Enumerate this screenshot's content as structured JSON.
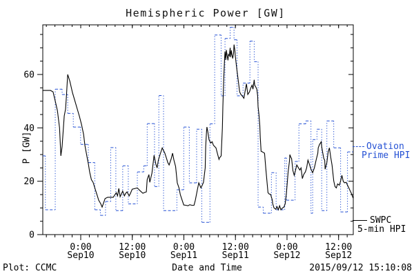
{
  "window": {
    "background": "#ffffff"
  },
  "header": {
    "title": "Hemispheric Power [GW]"
  },
  "footer": {
    "left": "Plot: CCMC",
    "center": "Date and Time",
    "right": "2015/09/12 15:10:08"
  },
  "legend": {
    "ovation": {
      "line1": "Ovation",
      "line2": "Prime HPI",
      "color": "#2551d4"
    },
    "swpc": {
      "line1": "SWPC",
      "line2": "5-min HPI",
      "color": "#000000"
    }
  },
  "chart_data": {
    "type": "line",
    "title": "Hemispheric Power [GW]",
    "xlabel": "Date and Time",
    "ylabel": "P [GW]",
    "x_unit": "hours since 2015-09-09 ~15:15 UT",
    "xlim": [
      0,
      72.25
    ],
    "ylim": [
      0,
      78.6
    ],
    "grid": false,
    "y_major_ticks": [
      0,
      20,
      40,
      60
    ],
    "y_minor_step": 5,
    "x_minor_step": 2,
    "x_minor_offset": 0.83,
    "x_major_ticks": [
      {
        "t": 8.83,
        "time": "0:00",
        "date": "Sep10"
      },
      {
        "t": 20.83,
        "time": "12:00",
        "date": "Sep10"
      },
      {
        "t": 32.83,
        "time": "0:00",
        "date": "Sep11"
      },
      {
        "t": 44.83,
        "time": "12:00",
        "date": "Sep11"
      },
      {
        "t": 56.83,
        "time": "0:00",
        "date": "Sep12"
      },
      {
        "t": 68.83,
        "time": "12:00",
        "date": "Sep12"
      }
    ],
    "series": [
      {
        "name": "SWPC 5-min HPI",
        "color": "#000000",
        "style": "solid",
        "points": [
          [
            0,
            54
          ],
          [
            0.8,
            54
          ],
          [
            1.8,
            54
          ],
          [
            2.4,
            53.5
          ],
          [
            2.9,
            50
          ],
          [
            3.4,
            46.5
          ],
          [
            3.9,
            40
          ],
          [
            4.2,
            29.5
          ],
          [
            4.5,
            33
          ],
          [
            5.0,
            44.5
          ],
          [
            5.3,
            47
          ],
          [
            5.5,
            52
          ],
          [
            5.8,
            60
          ],
          [
            6.3,
            57.5
          ],
          [
            6.9,
            53.2
          ],
          [
            7.4,
            50.5
          ],
          [
            8.0,
            47.2
          ],
          [
            8.5,
            44.5
          ],
          [
            9.0,
            41.3
          ],
          [
            9.5,
            37.5
          ],
          [
            9.8,
            33.5
          ],
          [
            10.3,
            29
          ],
          [
            10.6,
            26.6
          ],
          [
            10.9,
            23.5
          ],
          [
            11.3,
            20.6
          ],
          [
            11.7,
            19.6
          ],
          [
            12.2,
            17
          ],
          [
            12.7,
            14.5
          ],
          [
            13.0,
            12.9
          ],
          [
            13.5,
            11.5
          ],
          [
            13.8,
            10.3
          ],
          [
            14.5,
            13.5
          ],
          [
            15.1,
            14
          ],
          [
            15.8,
            14
          ],
          [
            16.4,
            14
          ],
          [
            17.1,
            15.7
          ],
          [
            17.4,
            14.5
          ],
          [
            17.7,
            17.3
          ],
          [
            18.0,
            14.2
          ],
          [
            18.6,
            16.3
          ],
          [
            19.0,
            14.5
          ],
          [
            19.3,
            15.5
          ],
          [
            19.6,
            16
          ],
          [
            20.1,
            14.5
          ],
          [
            20.4,
            15.5
          ],
          [
            20.8,
            17
          ],
          [
            21.5,
            17.3
          ],
          [
            22.0,
            17.5
          ],
          [
            22.6,
            16.5
          ],
          [
            23.3,
            15.5
          ],
          [
            23.7,
            15.8
          ],
          [
            24.1,
            16
          ],
          [
            24.3,
            20.6
          ],
          [
            24.7,
            22.5
          ],
          [
            24.9,
            19.6
          ],
          [
            25.4,
            23
          ],
          [
            25.9,
            29.7
          ],
          [
            26.3,
            26.5
          ],
          [
            26.6,
            25
          ],
          [
            26.9,
            27.9
          ],
          [
            27.3,
            30
          ],
          [
            27.8,
            32.5
          ],
          [
            28.1,
            31.5
          ],
          [
            28.4,
            30.5
          ],
          [
            28.8,
            28.5
          ],
          [
            29.1,
            27
          ],
          [
            29.4,
            26.1
          ],
          [
            29.9,
            28.5
          ],
          [
            30.2,
            30.5
          ],
          [
            30.5,
            28
          ],
          [
            30.9,
            25.5
          ],
          [
            31.3,
            19.4
          ],
          [
            31.7,
            17.5
          ],
          [
            32.0,
            15
          ],
          [
            32.3,
            13.5
          ],
          [
            32.8,
            11.1
          ],
          [
            33.3,
            11
          ],
          [
            33.8,
            10.8
          ],
          [
            34.2,
            11.2
          ],
          [
            34.7,
            11
          ],
          [
            35.2,
            11
          ],
          [
            35.5,
            12.9
          ],
          [
            36.0,
            17
          ],
          [
            36.3,
            19.4
          ],
          [
            36.8,
            17.5
          ],
          [
            37.1,
            18.5
          ],
          [
            37.4,
            19.6
          ],
          [
            37.8,
            25
          ],
          [
            37.9,
            33
          ],
          [
            38.1,
            38.5
          ],
          [
            38.2,
            40.3
          ],
          [
            38.4,
            38.5
          ],
          [
            38.7,
            35.5
          ],
          [
            39.1,
            34.3
          ],
          [
            39.4,
            34.8
          ],
          [
            39.7,
            33.5
          ],
          [
            40.0,
            33
          ],
          [
            40.3,
            32.5
          ],
          [
            40.7,
            30
          ],
          [
            41.0,
            28.2
          ],
          [
            41.1,
            28.7
          ],
          [
            41.5,
            29.5
          ],
          [
            41.6,
            33
          ],
          [
            41.8,
            40
          ],
          [
            41.9,
            48
          ],
          [
            42.1,
            58
          ],
          [
            42.3,
            66
          ],
          [
            42.4,
            68.6
          ],
          [
            42.6,
            65.5
          ],
          [
            42.7,
            69.2
          ],
          [
            42.9,
            67
          ],
          [
            43.1,
            65.3
          ],
          [
            43.2,
            67.5
          ],
          [
            43.4,
            67
          ],
          [
            43.6,
            70
          ],
          [
            43.7,
            66.5
          ],
          [
            43.9,
            69
          ],
          [
            44.0,
            67.5
          ],
          [
            44.2,
            66
          ],
          [
            44.4,
            68
          ],
          [
            44.5,
            71.2
          ],
          [
            44.7,
            69
          ],
          [
            44.8,
            67
          ],
          [
            45.0,
            64
          ],
          [
            45.2,
            61.4
          ],
          [
            45.5,
            57.5
          ],
          [
            45.8,
            53.5
          ],
          [
            46.1,
            52.5
          ],
          [
            46.4,
            52
          ],
          [
            46.8,
            51.1
          ],
          [
            47.1,
            54
          ],
          [
            47.4,
            56.5
          ],
          [
            47.7,
            52.5
          ],
          [
            48.1,
            53.5
          ],
          [
            48.4,
            55
          ],
          [
            48.7,
            56
          ],
          [
            48.9,
            54.5
          ],
          [
            49.2,
            58
          ],
          [
            49.3,
            56
          ],
          [
            49.5,
            55.5
          ],
          [
            49.8,
            54.5
          ],
          [
            50.0,
            52
          ],
          [
            50.1,
            48
          ],
          [
            50.3,
            45
          ],
          [
            50.5,
            41
          ],
          [
            50.6,
            36.4
          ],
          [
            50.8,
            31.2
          ],
          [
            51.1,
            31
          ],
          [
            51.4,
            30.7
          ],
          [
            51.6,
            30.5
          ],
          [
            51.9,
            24.5
          ],
          [
            52.2,
            19.4
          ],
          [
            52.4,
            15.7
          ],
          [
            52.7,
            15.2
          ],
          [
            53.0,
            15.1
          ],
          [
            53.4,
            13
          ],
          [
            53.5,
            11.6
          ],
          [
            53.8,
            10
          ],
          [
            54.2,
            9.5
          ],
          [
            54.5,
            10.5
          ],
          [
            54.8,
            9.3
          ],
          [
            55.1,
            10.8
          ],
          [
            55.4,
            9.3
          ],
          [
            55.8,
            10
          ],
          [
            56.1,
            10.3
          ],
          [
            56.4,
            11.5
          ],
          [
            56.7,
            15.5
          ],
          [
            57.1,
            23.5
          ],
          [
            57.4,
            27.5
          ],
          [
            57.5,
            30
          ],
          [
            57.7,
            29
          ],
          [
            57.9,
            28.5
          ],
          [
            58.2,
            24
          ],
          [
            58.5,
            22.2
          ],
          [
            58.8,
            24
          ],
          [
            59.1,
            26.1
          ],
          [
            59.5,
            25
          ],
          [
            59.8,
            24.2
          ],
          [
            60.1,
            25
          ],
          [
            60.4,
            21
          ],
          [
            60.7,
            22.5
          ],
          [
            61.1,
            23.5
          ],
          [
            61.4,
            25
          ],
          [
            61.7,
            27.9
          ],
          [
            62.0,
            26.5
          ],
          [
            62.4,
            24.5
          ],
          [
            62.8,
            23.2
          ],
          [
            63.2,
            25
          ],
          [
            63.6,
            27.9
          ],
          [
            64.0,
            30.5
          ],
          [
            64.1,
            32.5
          ],
          [
            64.4,
            33.8
          ],
          [
            64.8,
            34.8
          ],
          [
            64.9,
            33
          ],
          [
            65.1,
            31
          ],
          [
            65.4,
            28.5
          ],
          [
            65.6,
            27.9
          ],
          [
            65.7,
            24.5
          ],
          [
            66.1,
            27
          ],
          [
            66.4,
            31
          ],
          [
            66.7,
            32.5
          ],
          [
            67.0,
            29
          ],
          [
            67.3,
            26.1
          ],
          [
            67.7,
            20.1
          ],
          [
            68.0,
            18
          ],
          [
            68.3,
            17.5
          ],
          [
            68.6,
            19
          ],
          [
            69.0,
            18.5
          ],
          [
            69.3,
            20.1
          ],
          [
            69.6,
            22.2
          ],
          [
            69.9,
            20
          ],
          [
            70.2,
            19.4
          ],
          [
            70.6,
            19.6
          ],
          [
            70.9,
            18.5
          ],
          [
            71.2,
            17.5
          ],
          [
            71.5,
            16.5
          ],
          [
            71.8,
            15.5
          ],
          [
            72.2,
            13.7
          ]
        ]
      },
      {
        "name": "Ovation Prime HPI",
        "color": "#2551d4",
        "style": "step-dashed",
        "steps": [
          [
            0,
            29.5
          ],
          [
            0.6,
            9.3
          ],
          [
            2.9,
            54.5
          ],
          [
            4.5,
            52.5
          ],
          [
            5.8,
            45.4
          ],
          [
            7.1,
            40.3
          ],
          [
            8.8,
            33.8
          ],
          [
            10.6,
            27
          ],
          [
            12.1,
            9.3
          ],
          [
            13.4,
            7.2
          ],
          [
            14.6,
            12.4
          ],
          [
            15.8,
            32.6
          ],
          [
            17.0,
            9.0
          ],
          [
            18.6,
            25.8
          ],
          [
            19.9,
            11.5
          ],
          [
            22.0,
            23.5
          ],
          [
            23.5,
            25.8
          ],
          [
            24.3,
            41.6
          ],
          [
            26.0,
            18
          ],
          [
            27.0,
            52.1
          ],
          [
            28.1,
            9.0
          ],
          [
            31.2,
            16.8
          ],
          [
            32.8,
            40.3
          ],
          [
            34.1,
            19.4
          ],
          [
            35.8,
            39.5
          ],
          [
            37.0,
            4.6
          ],
          [
            38.9,
            41.5
          ],
          [
            40.0,
            74.8
          ],
          [
            41.5,
            52
          ],
          [
            42.4,
            73.5
          ],
          [
            43.6,
            77.7
          ],
          [
            44.5,
            73
          ],
          [
            45.2,
            52
          ],
          [
            46.6,
            56.8
          ],
          [
            48.2,
            72.5
          ],
          [
            49.2,
            64.8
          ],
          [
            50.1,
            10.3
          ],
          [
            51.3,
            8.0
          ],
          [
            53.2,
            23.2
          ],
          [
            54.3,
            9.3
          ],
          [
            56.3,
            28.7
          ],
          [
            56.7,
            12.9
          ],
          [
            58.7,
            27.4
          ],
          [
            59.6,
            41.5
          ],
          [
            61.2,
            42.6
          ],
          [
            62.4,
            8.0
          ],
          [
            62.8,
            35.6
          ],
          [
            63.8,
            39.5
          ],
          [
            64.9,
            9.0
          ],
          [
            66.1,
            42.6
          ],
          [
            67.7,
            32.5
          ],
          [
            69.3,
            8.5
          ],
          [
            70.9,
            31
          ],
          [
            72.2,
            31
          ]
        ]
      }
    ]
  }
}
